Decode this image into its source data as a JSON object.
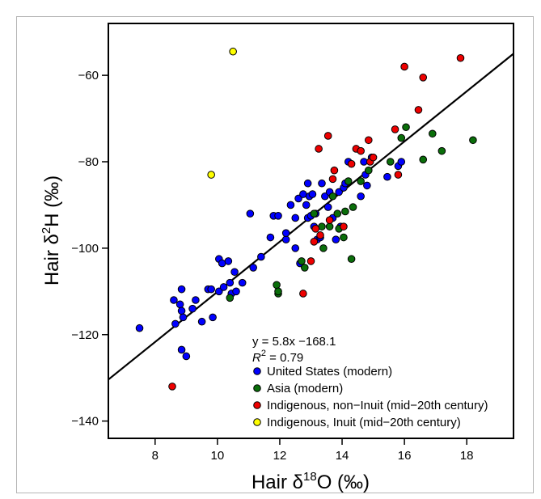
{
  "chart_data": {
    "type": "scatter",
    "xlim": [
      6.5,
      19.5
    ],
    "ylim": [
      -144,
      -48
    ],
    "x_ticks": [
      8,
      10,
      12,
      14,
      16,
      18
    ],
    "y_ticks": [
      -60,
      -80,
      -100,
      -120,
      -140
    ],
    "x_tick_labels": [
      "8",
      "10",
      "12",
      "14",
      "16",
      "18"
    ],
    "y_tick_labels": [
      "−60",
      "−80",
      "−100",
      "−120",
      "−140"
    ],
    "xlabel": {
      "prefix": "Hair δ",
      "sup": "18",
      "suffix": "O (‰)"
    },
    "ylabel": {
      "prefix": "Hair δ",
      "sup": "2",
      "suffix": "H (‰)"
    },
    "regression": {
      "equation": "y = 5.8x −168.1",
      "r2_label": "R",
      "r2_sup": "2",
      "r2_value": " = 0.79",
      "slope": 5.8,
      "intercept": -168.1
    },
    "grid": false,
    "legend_placement": "bottom-center",
    "series": [
      {
        "name": "United States (modern)",
        "color": "#0000ff",
        "points": [
          [
            7.5,
            -118.5
          ],
          [
            8.6,
            -112
          ],
          [
            8.65,
            -117.5
          ],
          [
            8.85,
            -109.5
          ],
          [
            8.8,
            -113
          ],
          [
            8.85,
            -114.5
          ],
          [
            8.9,
            -116
          ],
          [
            8.85,
            -123.5
          ],
          [
            9.0,
            -125
          ],
          [
            9.2,
            -114
          ],
          [
            9.3,
            -112
          ],
          [
            9.5,
            -117
          ],
          [
            9.7,
            -109.5
          ],
          [
            9.8,
            -109.5
          ],
          [
            9.85,
            -116
          ],
          [
            10.05,
            -110
          ],
          [
            10.05,
            -102.5
          ],
          [
            10.15,
            -103.5
          ],
          [
            10.2,
            -109
          ],
          [
            10.35,
            -103
          ],
          [
            10.4,
            -108
          ],
          [
            10.45,
            -110.5
          ],
          [
            10.55,
            -105.5
          ],
          [
            10.6,
            -110
          ],
          [
            10.8,
            -108
          ],
          [
            11.05,
            -92
          ],
          [
            11.15,
            -104.5
          ],
          [
            11.4,
            -102
          ],
          [
            11.7,
            -97.5
          ],
          [
            11.8,
            -92.5
          ],
          [
            11.95,
            -92.5
          ],
          [
            12.2,
            -98
          ],
          [
            12.2,
            -96.5
          ],
          [
            12.35,
            -90
          ],
          [
            12.5,
            -93
          ],
          [
            12.65,
            -103.5
          ],
          [
            12.6,
            -88.5
          ],
          [
            12.75,
            -87.5
          ],
          [
            12.9,
            -85
          ],
          [
            12.85,
            -90
          ],
          [
            12.9,
            -93
          ],
          [
            12.95,
            -88
          ],
          [
            13.05,
            -87.5
          ],
          [
            13.1,
            -95
          ],
          [
            13.15,
            -92
          ],
          [
            13.35,
            -85
          ],
          [
            13.45,
            -88
          ],
          [
            13.55,
            -90.5
          ],
          [
            13.6,
            -87
          ],
          [
            13.7,
            -93
          ],
          [
            13.8,
            -98
          ],
          [
            13.9,
            -87
          ],
          [
            13.95,
            -95
          ],
          [
            14.05,
            -86
          ],
          [
            14.1,
            -85
          ],
          [
            14.2,
            -80
          ],
          [
            14.6,
            -88
          ],
          [
            14.7,
            -80
          ],
          [
            14.8,
            -85.5
          ],
          [
            14.75,
            -83
          ],
          [
            14.95,
            -79
          ],
          [
            15.45,
            -83.5
          ],
          [
            15.8,
            -81
          ],
          [
            15.9,
            -80
          ],
          [
            13.2,
            -98
          ],
          [
            13.3,
            -97.5
          ],
          [
            12.5,
            -100
          ],
          [
            13.0,
            -92.5
          ]
        ]
      },
      {
        "name": "Asia (modern)",
        "color": "#0a6e0a",
        "points": [
          [
            10.4,
            -111.5
          ],
          [
            11.9,
            -108.5
          ],
          [
            11.95,
            -110.5
          ],
          [
            11.95,
            -110
          ],
          [
            12.7,
            -103
          ],
          [
            12.8,
            -104.5
          ],
          [
            13.1,
            -92
          ],
          [
            13.35,
            -95
          ],
          [
            13.4,
            -100
          ],
          [
            13.6,
            -95
          ],
          [
            13.7,
            -88
          ],
          [
            13.85,
            -92
          ],
          [
            13.9,
            -95.5
          ],
          [
            14.05,
            -97.5
          ],
          [
            14.1,
            -91.5
          ],
          [
            14.2,
            -84.5
          ],
          [
            14.3,
            -102.5
          ],
          [
            14.35,
            -90.5
          ],
          [
            14.6,
            -84.5
          ],
          [
            14.85,
            -82
          ],
          [
            15.55,
            -80
          ],
          [
            15.9,
            -74.5
          ],
          [
            16.05,
            -72
          ],
          [
            16.6,
            -79.5
          ],
          [
            16.9,
            -73.5
          ],
          [
            17.2,
            -77.5
          ],
          [
            18.2,
            -75
          ]
        ]
      },
      {
        "name": "Indigenous, non−Inuit (mid−20th century)",
        "color": "#ee0000",
        "points": [
          [
            8.55,
            -132
          ],
          [
            12.75,
            -110.5
          ],
          [
            13.0,
            -103
          ],
          [
            13.1,
            -98.5
          ],
          [
            13.15,
            -95.5
          ],
          [
            13.25,
            -77
          ],
          [
            13.3,
            -97
          ],
          [
            13.55,
            -74
          ],
          [
            13.6,
            -93.5
          ],
          [
            13.7,
            -84
          ],
          [
            13.75,
            -82
          ],
          [
            14.05,
            -95
          ],
          [
            14.3,
            -80.5
          ],
          [
            14.45,
            -77
          ],
          [
            14.6,
            -77.5
          ],
          [
            14.85,
            -75
          ],
          [
            14.9,
            -80
          ],
          [
            15.0,
            -79
          ],
          [
            15.7,
            -72.5
          ],
          [
            15.8,
            -83
          ],
          [
            16.0,
            -58
          ],
          [
            16.45,
            -68
          ],
          [
            16.6,
            -60.5
          ],
          [
            17.8,
            -56
          ]
        ]
      },
      {
        "name": "Indigenous, Inuit (mid−20th century)",
        "color": "#ffff00",
        "points": [
          [
            9.8,
            -83
          ],
          [
            10.5,
            -54.5
          ]
        ]
      }
    ]
  }
}
